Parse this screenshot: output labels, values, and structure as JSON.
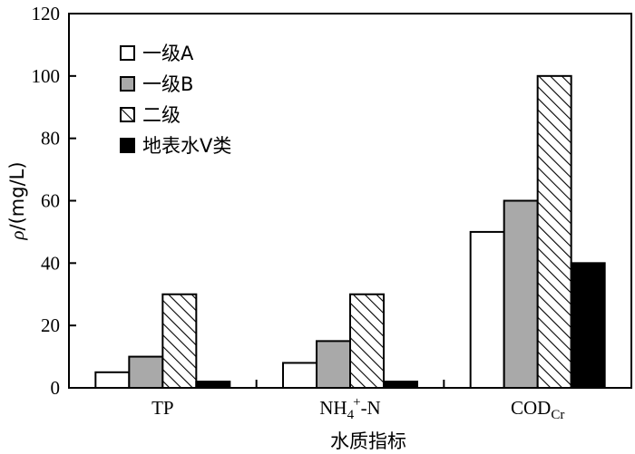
{
  "chart_data": {
    "type": "bar",
    "categories": [
      {
        "main": "TP",
        "sup": "",
        "sub": "",
        "tail": ""
      },
      {
        "main": "NH",
        "sub": "4",
        "sup": "+",
        "tail": "-N"
      },
      {
        "main": "COD",
        "sub": "Cr",
        "sup": "",
        "tail": ""
      }
    ],
    "series": [
      {
        "name": "一级A",
        "values": [
          5,
          8,
          50
        ],
        "fill": "#ffffff",
        "pattern": "none"
      },
      {
        "name": "一级B",
        "values": [
          10,
          15,
          60
        ],
        "fill": "#a9a9a9",
        "pattern": "none"
      },
      {
        "name": "二级",
        "values": [
          30,
          30,
          100
        ],
        "fill": "#ffffff",
        "pattern": "diagonal-hatch"
      },
      {
        "name": "地表水V类",
        "values": [
          2,
          2,
          40
        ],
        "fill": "#000000",
        "pattern": "none"
      }
    ],
    "xlabel": "水质指标",
    "ylabel_symbol": "ρ",
    "ylabel_unit": "/(mg/L)",
    "ylim": [
      0,
      120
    ],
    "yticks": [
      0,
      20,
      40,
      60,
      80,
      100,
      120
    ],
    "legend": "top-left",
    "grid": false
  }
}
